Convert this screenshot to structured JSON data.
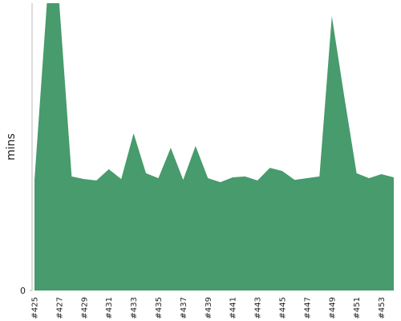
{
  "chart_data": {
    "type": "area",
    "y_label": "mins",
    "categories": [
      "#425",
      null,
      "#427",
      null,
      "#429",
      null,
      "#431",
      null,
      "#433",
      null,
      "#435",
      null,
      "#437",
      null,
      "#439",
      null,
      "#441",
      null,
      "#443",
      null,
      "#445",
      null,
      "#447",
      null,
      "#449",
      null,
      "#451",
      null,
      "#453",
      null
    ],
    "values": [
      38.5,
      100,
      100,
      39.7,
      38.8,
      38.3,
      42.2,
      38.8,
      54.7,
      40.8,
      39.1,
      49.7,
      38.5,
      50.3,
      39.1,
      37.7,
      39.4,
      39.7,
      38.3,
      42.7,
      41.6,
      38.5,
      39.1,
      39.7,
      95.5,
      67.6,
      40.8,
      39.1,
      40.5,
      39.4
    ],
    "color": "#479b6c",
    "ylim": [
      0,
      100
    ],
    "yticks": [
      0
    ]
  }
}
